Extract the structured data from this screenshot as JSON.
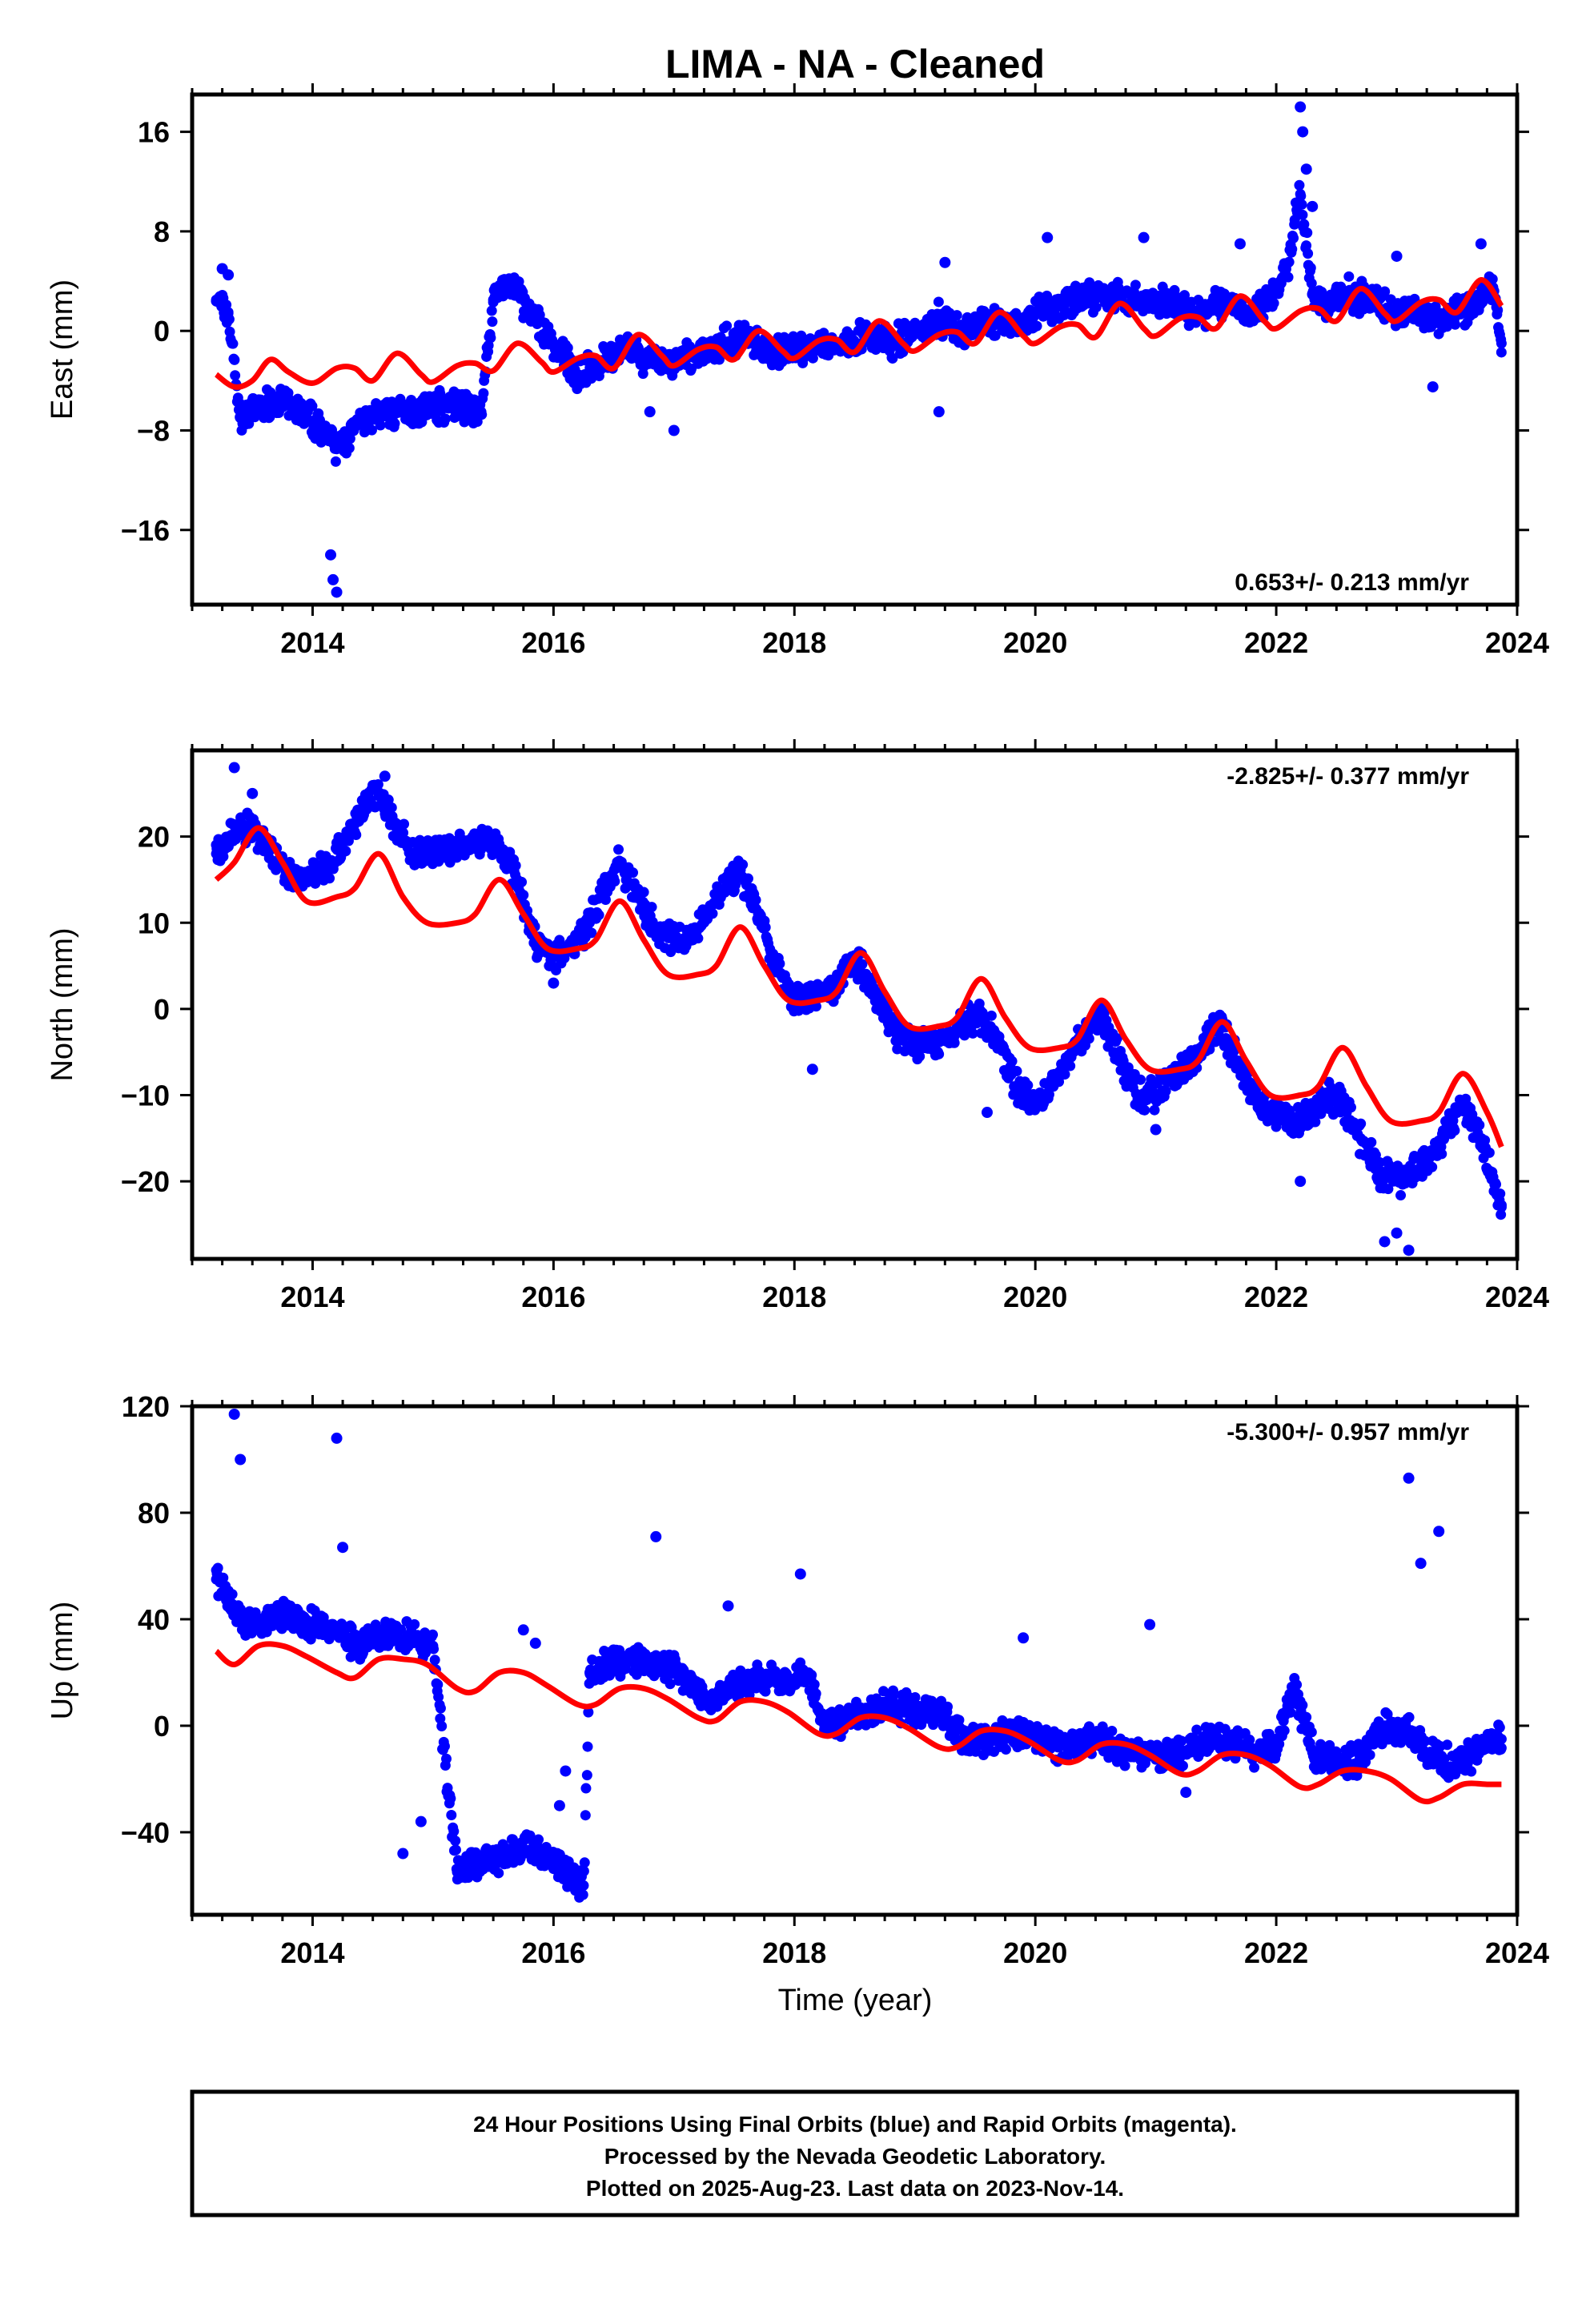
{
  "title": "LIMA  - NA - Cleaned",
  "xlabel": "Time (year)",
  "colors": {
    "final": "#0000ff",
    "model": "#ff0000",
    "rapid": "#ff00ff"
  },
  "caption": [
    "24 Hour Positions Using Final Orbits (blue) and Rapid Orbits (magenta).",
    "Processed by the Nevada Geodetic Laboratory.",
    "Plotted on 2025-Aug-23. Last data on 2023-Nov-14."
  ],
  "chart_data": [
    {
      "type": "scatter",
      "component": "East",
      "ylabel": "East (mm)",
      "rate": "0.653+/- 0.213 mm/yr",
      "rate_position": "bottom-right",
      "xlim": [
        2013.0,
        2024.0
      ],
      "xticks": [
        2014,
        2016,
        2018,
        2020,
        2022,
        2024
      ],
      "ylim": [
        -22,
        19
      ],
      "yticks": [
        -16,
        -8,
        0,
        8,
        16
      ],
      "series": [
        {
          "name": "Final Orbits",
          "kind": "points",
          "x": [
            2013.2,
            2013.3,
            2013.4,
            2013.5,
            2013.7,
            2013.9,
            2014.1,
            2014.2,
            2014.4,
            2014.6,
            2014.8,
            2015.0,
            2015.2,
            2015.4,
            2015.5,
            2015.6,
            2015.7,
            2015.8,
            2016.0,
            2016.2,
            2016.4,
            2016.6,
            2016.8,
            2017.0,
            2017.2,
            2017.4,
            2017.6,
            2017.8,
            2018.0,
            2018.2,
            2018.4,
            2018.6,
            2018.8,
            2019.0,
            2019.2,
            2019.4,
            2019.6,
            2019.8,
            2020.0,
            2020.2,
            2020.4,
            2020.6,
            2020.8,
            2021.0,
            2021.2,
            2021.4,
            2021.6,
            2021.8,
            2022.0,
            2022.1,
            2022.2,
            2022.3,
            2022.4,
            2022.6,
            2022.8,
            2023.0,
            2023.2,
            2023.4,
            2023.6,
            2023.8,
            2023.87
          ],
          "y": [
            2.5,
            1.5,
            -7,
            -6.5,
            -5.5,
            -6.5,
            -8,
            -9.5,
            -7.5,
            -6.5,
            -6.5,
            -6,
            -6,
            -6.5,
            2.5,
            4,
            3,
            1.5,
            -1,
            -3.5,
            -2.5,
            -1.5,
            -2.5,
            -2.5,
            -2,
            -1,
            -0.5,
            -1.5,
            -1.5,
            -1.5,
            -1,
            -0.5,
            -1,
            0,
            1,
            0,
            1,
            0.5,
            1.5,
            2,
            2.5,
            3,
            2.5,
            2.5,
            2,
            1.5,
            2.5,
            1.5,
            3,
            5.5,
            11,
            3,
            2,
            3,
            2.5,
            1.5,
            1.5,
            1,
            2,
            3.5,
            -1
          ]
        },
        {
          "name": "Final Orbits (outliers)",
          "kind": "points",
          "x": [
            2013.25,
            2013.3,
            2014.15,
            2014.17,
            2014.2,
            2016.8,
            2017.0,
            2019.2,
            2019.25,
            2020.1,
            2020.9,
            2021.7,
            2022.2,
            2022.22,
            2022.25,
            2022.3,
            2023.0,
            2023.3,
            2023.7
          ],
          "y": [
            5,
            4.5,
            -18,
            -20,
            -21,
            -6.5,
            -8,
            -6.5,
            5.5,
            7.5,
            7.5,
            7,
            18,
            16,
            13,
            10,
            6,
            -4.5,
            7
          ]
        },
        {
          "name": "Model",
          "kind": "line",
          "x": [
            2013.2,
            2013.35,
            2013.5,
            2013.65,
            2013.8,
            2014.0,
            2014.2,
            2014.35,
            2014.5,
            2014.7,
            2014.9,
            2015.0,
            2015.2,
            2015.35,
            2015.5,
            2015.7,
            2015.9,
            2016.0,
            2016.2,
            2016.35,
            2016.5,
            2016.7,
            2016.9,
            2017.0,
            2017.2,
            2017.35,
            2017.5,
            2017.7,
            2017.9,
            2018.0,
            2018.2,
            2018.35,
            2018.5,
            2018.7,
            2018.9,
            2019.0,
            2019.2,
            2019.35,
            2019.5,
            2019.7,
            2019.9,
            2020.0,
            2020.2,
            2020.35,
            2020.5,
            2020.7,
            2020.9,
            2021.0,
            2021.2,
            2021.35,
            2021.5,
            2021.7,
            2021.9,
            2022.0,
            2022.2,
            2022.35,
            2022.5,
            2022.7,
            2022.9,
            2023.0,
            2023.2,
            2023.35,
            2023.5,
            2023.7,
            2023.87
          ],
          "y": [
            -3.5,
            -4.5,
            -4,
            -2.3,
            -3.3,
            -4.2,
            -3,
            -3,
            -4,
            -1.8,
            -3.5,
            -4.1,
            -2.8,
            -2.6,
            -3.2,
            -1,
            -2.5,
            -3.3,
            -2.2,
            -2,
            -3,
            -0.3,
            -2,
            -2.8,
            -1.5,
            -1.3,
            -2.3,
            0,
            -1.6,
            -2.2,
            -0.8,
            -0.7,
            -1.7,
            0.8,
            -1,
            -1.6,
            -0.3,
            -0.1,
            -1,
            1.5,
            -0.4,
            -1,
            0.3,
            0.5,
            -0.5,
            2.2,
            0.2,
            -0.4,
            1,
            1.1,
            0.2,
            2.8,
            0.8,
            0.2,
            1.6,
            1.8,
            0.8,
            3.4,
            1.4,
            0.8,
            2.3,
            2.5,
            1.5,
            4.1,
            2
          ]
        }
      ]
    },
    {
      "type": "scatter",
      "component": "North",
      "ylabel": "North (mm)",
      "rate": "-2.825+/- 0.377 mm/yr",
      "rate_position": "top-right",
      "xlim": [
        2013.0,
        2024.0
      ],
      "xticks": [
        2014,
        2016,
        2018,
        2020,
        2022,
        2024
      ],
      "ylim": [
        -29,
        30
      ],
      "yticks": [
        -20,
        -10,
        0,
        10,
        20
      ],
      "series": [
        {
          "name": "Final Orbits",
          "kind": "points",
          "x": [
            2013.2,
            2013.3,
            2013.45,
            2013.55,
            2013.7,
            2013.85,
            2014.0,
            2014.15,
            2014.3,
            2014.45,
            2014.55,
            2014.7,
            2014.85,
            2015.0,
            2015.2,
            2015.4,
            2015.55,
            2015.7,
            2015.85,
            2016.0,
            2016.15,
            2016.3,
            2016.45,
            2016.55,
            2016.7,
            2016.85,
            2017.0,
            2017.15,
            2017.3,
            2017.45,
            2017.55,
            2017.7,
            2017.85,
            2018.0,
            2018.15,
            2018.3,
            2018.45,
            2018.55,
            2018.7,
            2018.85,
            2019.0,
            2019.15,
            2019.3,
            2019.45,
            2019.55,
            2019.7,
            2019.85,
            2020.0,
            2020.15,
            2020.3,
            2020.45,
            2020.55,
            2020.7,
            2020.85,
            2021.0,
            2021.15,
            2021.3,
            2021.45,
            2021.55,
            2021.7,
            2021.85,
            2022.0,
            2022.15,
            2022.3,
            2022.45,
            2022.55,
            2022.7,
            2022.85,
            2023.0,
            2023.15,
            2023.3,
            2023.45,
            2023.55,
            2023.7,
            2023.87
          ],
          "y": [
            18,
            20,
            21,
            20,
            17,
            15,
            16,
            17,
            20,
            24,
            25,
            21,
            18,
            18,
            19,
            19.5,
            19,
            15,
            8,
            6,
            7,
            10,
            15,
            17,
            13,
            9,
            8,
            8,
            12,
            15,
            16,
            11,
            5,
            1,
            1,
            2,
            5,
            5,
            1,
            -3,
            -4,
            -4,
            -3,
            -1,
            -1,
            -4,
            -9,
            -11,
            -9,
            -5,
            -2,
            -1,
            -6,
            -10,
            -10,
            -8,
            -6,
            -3,
            -2,
            -7,
            -11,
            -12,
            -13,
            -12,
            -10,
            -11,
            -15,
            -19,
            -20,
            -19,
            -17,
            -13,
            -11,
            -15,
            -23
          ]
        },
        {
          "name": "Final Orbits (outliers)",
          "kind": "points",
          "x": [
            2013.35,
            2013.5,
            2014.6,
            2016.0,
            2018.15,
            2019.6,
            2021.0,
            2022.2,
            2022.9,
            2023.0,
            2023.1
          ],
          "y": [
            28,
            25,
            27,
            3,
            -7,
            -12,
            -14,
            -20,
            -27,
            -26,
            -28
          ]
        },
        {
          "name": "Model",
          "kind": "line",
          "x": [
            2013.2,
            2013.35,
            2013.55,
            2013.75,
            2013.95,
            2014.2,
            2014.35,
            2014.55,
            2014.75,
            2014.95,
            2015.2,
            2015.35,
            2015.55,
            2015.75,
            2015.95,
            2016.2,
            2016.35,
            2016.55,
            2016.75,
            2016.95,
            2017.2,
            2017.35,
            2017.55,
            2017.75,
            2017.95,
            2018.2,
            2018.35,
            2018.55,
            2018.75,
            2018.95,
            2019.2,
            2019.35,
            2019.55,
            2019.75,
            2019.95,
            2020.2,
            2020.35,
            2020.55,
            2020.75,
            2020.95,
            2021.2,
            2021.35,
            2021.55,
            2021.75,
            2021.95,
            2022.2,
            2022.35,
            2022.55,
            2022.75,
            2022.95,
            2023.2,
            2023.35,
            2023.55,
            2023.75,
            2023.87
          ],
          "y": [
            15,
            17,
            21,
            17,
            12.5,
            13,
            14,
            18,
            13,
            10,
            10,
            11,
            15,
            11,
            7,
            7,
            8,
            12.5,
            8,
            4,
            4,
            5,
            9.5,
            5,
            1,
            1,
            2,
            6.5,
            2,
            -2,
            -2,
            -1,
            3.5,
            -1,
            -4.5,
            -4.5,
            -3.5,
            1,
            -3.5,
            -7,
            -7,
            -6,
            -1.5,
            -6,
            -10,
            -10,
            -9,
            -4.5,
            -9,
            -13,
            -13,
            -12,
            -7.5,
            -12,
            -16
          ]
        }
      ]
    },
    {
      "type": "scatter",
      "component": "Up",
      "ylabel": "Up (mm)",
      "rate": "-5.300+/- 0.957 mm/yr",
      "rate_position": "top-right",
      "xlim": [
        2013.0,
        2024.0
      ],
      "xticks": [
        2014,
        2016,
        2018,
        2020,
        2022,
        2024
      ],
      "ylim": [
        -71,
        120
      ],
      "yticks": [
        -40,
        0,
        40,
        80,
        120
      ],
      "series": [
        {
          "name": "Final Orbits",
          "kind": "points",
          "x": [
            2013.2,
            2013.3,
            2013.45,
            2013.6,
            2013.8,
            2014.0,
            2014.2,
            2014.4,
            2014.6,
            2014.8,
            2015.0,
            2015.2,
            2015.3,
            2015.5,
            2015.7,
            2015.9,
            2016.1,
            2016.25,
            2016.3,
            2016.4,
            2016.6,
            2016.8,
            2017.0,
            2017.2,
            2017.35,
            2017.5,
            2017.7,
            2017.9,
            2018.1,
            2018.25,
            2018.4,
            2018.6,
            2018.8,
            2019.0,
            2019.2,
            2019.4,
            2019.6,
            2019.8,
            2020.0,
            2020.2,
            2020.4,
            2020.6,
            2020.8,
            2021.0,
            2021.2,
            2021.4,
            2021.6,
            2021.8,
            2022.0,
            2022.15,
            2022.3,
            2022.5,
            2022.7,
            2022.9,
            2023.1,
            2023.3,
            2023.5,
            2023.7,
            2023.87
          ],
          "y": [
            55,
            48,
            38,
            40,
            42,
            38,
            35,
            30,
            35,
            34,
            30,
            -55,
            -52,
            -50,
            -45,
            -48,
            -55,
            -60,
            20,
            22,
            25,
            24,
            22,
            12,
            10,
            16,
            18,
            16,
            20,
            0,
            2,
            5,
            8,
            5,
            6,
            -5,
            -6,
            -2,
            -5,
            -8,
            -5,
            -6,
            -10,
            -10,
            -12,
            -5,
            -6,
            -10,
            -8,
            15,
            -10,
            -15,
            -12,
            0,
            -2,
            -12,
            -15,
            -8,
            -5
          ]
        },
        {
          "name": "Final Orbits (outliers)",
          "kind": "points",
          "x": [
            2013.35,
            2013.4,
            2014.2,
            2014.25,
            2014.75,
            2014.9,
            2015.75,
            2015.85,
            2016.05,
            2016.1,
            2016.85,
            2017.45,
            2018.05,
            2019.9,
            2020.95,
            2021.25,
            2023.1,
            2023.2,
            2023.35
          ],
          "y": [
            117,
            100,
            108,
            67,
            -48,
            -36,
            36,
            31,
            -30,
            -17,
            71,
            45,
            57,
            33,
            38,
            -25,
            93,
            61,
            73
          ]
        },
        {
          "name": "Model",
          "kind": "line",
          "x": [
            2013.2,
            2013.35,
            2013.55,
            2013.75,
            2013.95,
            2014.2,
            2014.35,
            2014.55,
            2014.75,
            2014.95,
            2015.2,
            2015.35,
            2015.55,
            2015.75,
            2015.95,
            2016.2,
            2016.35,
            2016.55,
            2016.75,
            2016.95,
            2017.2,
            2017.35,
            2017.55,
            2017.75,
            2017.95,
            2018.2,
            2018.35,
            2018.55,
            2018.75,
            2018.95,
            2019.2,
            2019.35,
            2019.55,
            2019.75,
            2019.95,
            2020.2,
            2020.35,
            2020.55,
            2020.75,
            2020.95,
            2021.2,
            2021.35,
            2021.55,
            2021.75,
            2021.95,
            2022.2,
            2022.35,
            2022.55,
            2022.75,
            2022.95,
            2023.2,
            2023.35,
            2023.55,
            2023.75,
            2023.87
          ],
          "y": [
            28,
            23,
            30,
            30,
            26,
            20,
            18,
            25,
            25,
            23,
            14,
            13,
            20,
            20,
            15,
            8,
            8,
            14,
            14,
            10,
            3,
            2,
            9,
            9,
            5,
            -3,
            -3,
            3,
            3,
            -1,
            -8,
            -8,
            -2,
            -2,
            -6,
            -13,
            -13,
            -7,
            -7,
            -11,
            -18,
            -17,
            -11,
            -11,
            -15,
            -23,
            -22,
            -17,
            -17,
            -20,
            -28,
            -27,
            -22,
            -22,
            -22
          ]
        }
      ]
    }
  ]
}
